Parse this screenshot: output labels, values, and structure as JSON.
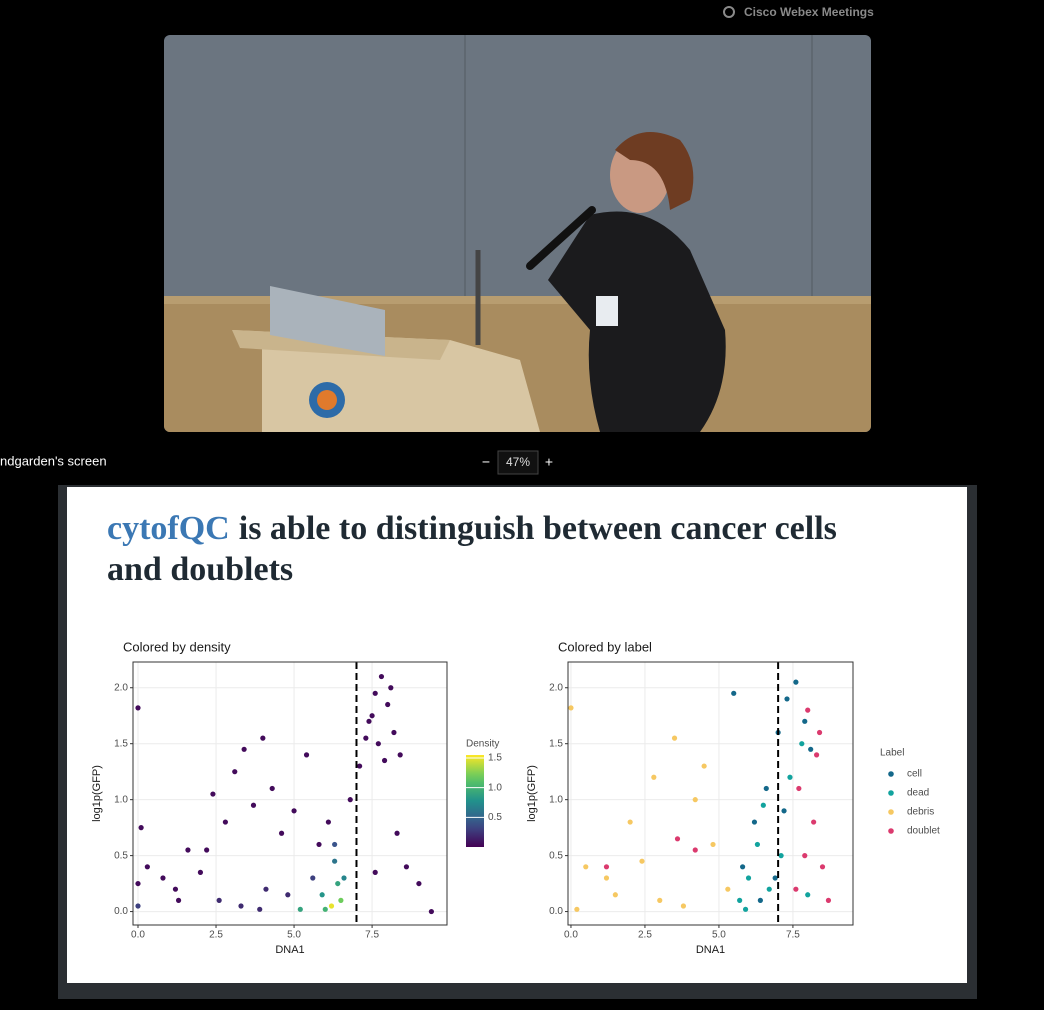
{
  "app": {
    "brand": "Cisco Webex Meetings",
    "share_label": "ndgarden's screen",
    "zoom_out": "−",
    "zoom": "47%",
    "zoom_in": "+"
  },
  "slide": {
    "title_highlight": "cytofQC",
    "title_line1_rest": "is able to distinguish between cancer cells",
    "title_line2": "and doublets"
  },
  "chart_data": [
    {
      "type": "scatter",
      "title": "Colored by density",
      "x_label": "DNA1",
      "y_label": "log1p(GFP)",
      "xlim": [
        -0.16,
        9.9
      ],
      "ylim": [
        -0.12,
        2.23
      ],
      "xticks": [
        {
          "value": 0,
          "label": "0.0"
        },
        2.5,
        {
          "value": 5,
          "label": "5.0"
        },
        7.5
      ],
      "yticks": [
        {
          "value": 0,
          "label": "0.0"
        },
        0.5,
        {
          "value": 1,
          "label": "1.0"
        },
        1.5,
        {
          "value": 2,
          "label": "2.0"
        }
      ],
      "grid": true,
      "threshold": 7,
      "colorbar": {
        "title": "Density",
        "colormap": "viridis",
        "lim": [
          0,
          1.55
        ],
        "ticks": [
          0.5,
          {
            "value": 1,
            "label": "1.0"
          },
          1.5
        ]
      },
      "x": [
        0.0,
        0.1,
        0.0,
        0.3,
        0.8,
        1.2,
        1.6,
        2.0,
        2.4,
        2.8,
        3.1,
        3.4,
        3.7,
        4.0,
        4.3,
        4.6,
        5.0,
        5.4,
        5.8,
        6.1,
        6.3,
        6.4,
        6.2,
        6.5,
        6.6,
        6.0,
        5.9,
        6.3,
        6.8,
        7.1,
        7.3,
        7.5,
        7.6,
        7.8,
        8.0,
        8.2,
        8.4,
        7.4,
        7.7,
        7.9,
        8.1,
        7.6,
        8.3,
        8.6,
        9.0,
        9.4,
        2.6,
        3.3,
        4.1,
        4.8,
        3.9,
        1.3,
        0.0,
        5.2,
        5.6,
        2.2
      ],
      "values": [
        1.82,
        0.75,
        0.05,
        0.4,
        0.3,
        0.2,
        0.55,
        0.35,
        1.05,
        0.8,
        1.25,
        1.45,
        0.95,
        1.55,
        1.1,
        0.7,
        0.9,
        1.4,
        0.6,
        0.8,
        0.45,
        0.25,
        0.05,
        0.1,
        0.3,
        0.02,
        0.15,
        0.6,
        1.0,
        1.3,
        1.55,
        1.75,
        1.95,
        2.1,
        1.85,
        1.6,
        1.4,
        1.7,
        1.5,
        1.35,
        2.0,
        0.35,
        0.7,
        0.4,
        0.25,
        0.0,
        0.1,
        0.05,
        0.2,
        0.15,
        0.02,
        0.1,
        0.25,
        0.02,
        0.3,
        0.55
      ],
      "density": [
        0.05,
        0.05,
        0.3,
        0.05,
        0.05,
        0.05,
        0.05,
        0.05,
        0.05,
        0.05,
        0.05,
        0.05,
        0.05,
        0.05,
        0.05,
        0.05,
        0.05,
        0.05,
        0.05,
        0.05,
        0.6,
        0.9,
        1.5,
        1.2,
        0.7,
        1.0,
        0.8,
        0.4,
        0.05,
        0.05,
        0.05,
        0.05,
        0.05,
        0.05,
        0.05,
        0.05,
        0.05,
        0.05,
        0.05,
        0.05,
        0.05,
        0.05,
        0.05,
        0.05,
        0.05,
        0.05,
        0.2,
        0.2,
        0.2,
        0.2,
        0.2,
        0.05,
        0.05,
        0.9,
        0.3,
        0.05
      ]
    },
    {
      "type": "scatter",
      "title": "Colored by label",
      "x_label": "DNA1",
      "y_label": "log1p(GFP)",
      "xlim": [
        -0.1,
        9.53
      ],
      "ylim": [
        -0.12,
        2.23
      ],
      "xticks": [
        {
          "value": 0,
          "label": "0.0"
        },
        2.5,
        {
          "value": 5,
          "label": "5.0"
        },
        7.5
      ],
      "yticks": [
        {
          "value": 0,
          "label": "0.0"
        },
        0.5,
        {
          "value": 1,
          "label": "1.0"
        },
        1.5,
        {
          "value": 2,
          "label": "2.0"
        }
      ],
      "grid": true,
      "threshold": 7,
      "legend_title": "Label",
      "series": [
        {
          "name": "debris",
          "color": "#f6c862",
          "x": [
            0.0,
            0.5,
            1.2,
            2.0,
            2.8,
            3.5,
            4.2,
            4.8,
            5.3,
            3.0,
            3.8,
            2.4,
            1.5,
            0.2,
            4.5
          ],
          "values": [
            1.82,
            0.4,
            0.3,
            0.8,
            1.2,
            1.55,
            1.0,
            0.6,
            0.2,
            0.1,
            0.05,
            0.45,
            0.15,
            0.02,
            1.3
          ]
        },
        {
          "name": "cell",
          "color": "#14688a",
          "x": [
            5.8,
            6.2,
            6.6,
            7.0,
            7.3,
            7.6,
            7.9,
            8.1,
            6.9,
            7.2,
            6.4,
            5.5
          ],
          "values": [
            0.4,
            0.8,
            1.1,
            1.6,
            1.9,
            2.05,
            1.7,
            1.45,
            0.3,
            0.9,
            0.1,
            1.95
          ]
        },
        {
          "name": "dead",
          "color": "#12a39e",
          "x": [
            5.7,
            6.0,
            6.3,
            6.7,
            7.1,
            7.4,
            7.8,
            6.5,
            5.9,
            8.0
          ],
          "values": [
            0.1,
            0.3,
            0.6,
            0.2,
            0.5,
            1.2,
            1.5,
            0.95,
            0.02,
            0.15
          ]
        },
        {
          "name": "doublet",
          "color": "#db3a6e",
          "x": [
            7.6,
            7.9,
            8.2,
            8.5,
            8.3,
            8.0,
            7.7,
            8.7,
            4.2,
            1.2,
            3.6,
            8.4
          ],
          "values": [
            0.2,
            0.5,
            0.8,
            0.4,
            1.4,
            1.8,
            1.1,
            0.1,
            0.55,
            0.4,
            0.65,
            1.6
          ]
        }
      ],
      "legend_order": [
        1,
        2,
        0,
        3
      ]
    }
  ]
}
